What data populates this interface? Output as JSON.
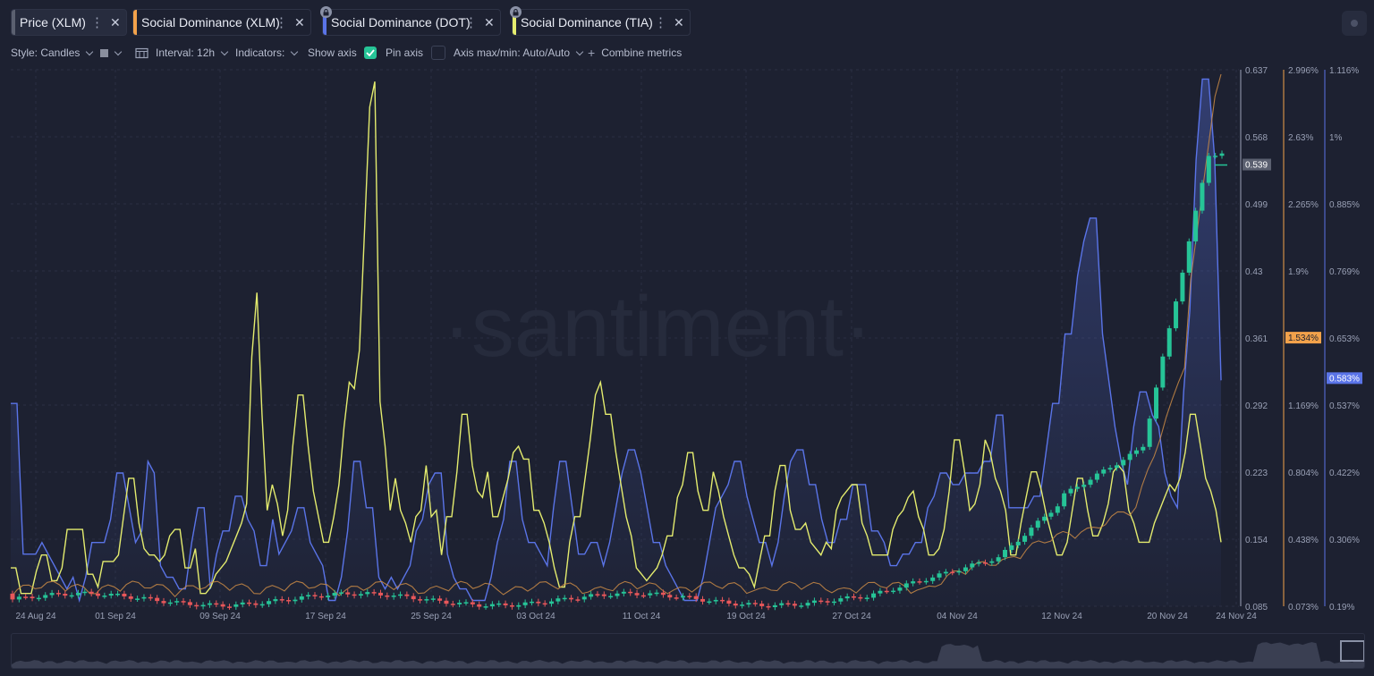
{
  "tabs": [
    {
      "label": "Price (XLM)",
      "color": "#5b6070",
      "active": true,
      "locked": false
    },
    {
      "label": "Social Dominance (XLM)",
      "color": "#f2a24b",
      "active": false,
      "locked": false
    },
    {
      "label": "Social Dominance (DOT)",
      "color": "#5a74e8",
      "active": false,
      "locked": true
    },
    {
      "label": "Social Dominance (TIA)",
      "color": "#e4ec6e",
      "active": false,
      "locked": true
    }
  ],
  "toolbar": {
    "style_label": "Style: Candles",
    "interval_label": "Interval: 12h",
    "indicators_label": "Indicators:",
    "show_axis_label": "Show axis",
    "show_axis_checked": true,
    "pin_axis_label": "Pin axis",
    "pin_axis_checked": false,
    "axis_label": "Axis max/min: Auto/Auto",
    "combine_label": "Combine metrics",
    "accent": "#26c497"
  },
  "watermark": "·santiment·",
  "chart_data": {
    "type": "line",
    "x_tick_labels": [
      "24 Aug 24",
      "01 Sep 24",
      "09 Sep 24",
      "17 Sep 24",
      "25 Sep 24",
      "03 Oct 24",
      "11 Oct 24",
      "19 Oct 24",
      "27 Oct 24",
      "04 Nov 24",
      "12 Nov 24",
      "20 Nov 24",
      "24 Nov 24"
    ],
    "axes": [
      {
        "name": "Price (XLM)",
        "ticks": [
          "0.637",
          "0.568",
          "0.499",
          "0.43",
          "0.361",
          "0.292",
          "0.223",
          "0.154",
          "0.085"
        ],
        "range": [
          0.085,
          0.637
        ],
        "current_label": "0.539",
        "current_value": 0.539,
        "color": "#9aa1b6"
      },
      {
        "name": "Social Dominance (XLM)",
        "ticks": [
          "2.996%",
          "2.63%",
          "2.265%",
          "1.9%",
          "1.534%",
          "1.169%",
          "0.804%",
          "0.438%",
          "0.073%"
        ],
        "range": [
          0.073,
          2.996
        ],
        "current_label": "1.534%",
        "current_value": 1.534,
        "color": "#f2a24b"
      },
      {
        "name": "Social Dominance (DOT)",
        "ticks": [
          "1.116%",
          "1%",
          "0.885%",
          "0.769%",
          "0.653%",
          "0.537%",
          "0.422%",
          "0.306%",
          "0.19%"
        ],
        "range": [
          0.19,
          1.116
        ],
        "current_label": "0.583%",
        "current_value": 0.583,
        "color": "#5a74e8"
      }
    ],
    "series": [
      {
        "name": "Social Dominance (DOT)",
        "color": "#5a74e8",
        "axis": 2,
        "values": [
          0.54,
          0.54,
          0.28,
          0.28,
          0.28,
          0.3,
          0.28,
          0.26,
          0.24,
          0.22,
          0.24,
          0.2,
          0.24,
          0.3,
          0.3,
          0.3,
          0.34,
          0.42,
          0.42,
          0.36,
          0.3,
          0.32,
          0.44,
          0.42,
          0.26,
          0.24,
          0.24,
          0.22,
          0.22,
          0.3,
          0.36,
          0.36,
          0.22,
          0.28,
          0.32,
          0.32,
          0.38,
          0.38,
          0.34,
          0.32,
          0.26,
          0.26,
          0.34,
          0.28,
          0.3,
          0.32,
          0.36,
          0.36,
          0.3,
          0.28,
          0.26,
          0.2,
          0.2,
          0.24,
          0.32,
          0.44,
          0.44,
          0.36,
          0.36,
          0.24,
          0.22,
          0.24,
          0.22,
          0.24,
          0.26,
          0.32,
          0.34,
          0.4,
          0.42,
          0.42,
          0.28,
          0.24,
          0.22,
          0.22,
          0.2,
          0.2,
          0.2,
          0.24,
          0.3,
          0.34,
          0.44,
          0.44,
          0.34,
          0.3,
          0.3,
          0.28,
          0.26,
          0.36,
          0.44,
          0.44,
          0.36,
          0.28,
          0.28,
          0.3,
          0.3,
          0.26,
          0.3,
          0.36,
          0.42,
          0.46,
          0.46,
          0.42,
          0.36,
          0.3,
          0.3,
          0.26,
          0.24,
          0.22,
          0.2,
          0.2,
          0.2,
          0.24,
          0.3,
          0.36,
          0.38,
          0.4,
          0.44,
          0.44,
          0.38,
          0.34,
          0.3,
          0.3,
          0.26,
          0.3,
          0.38,
          0.44,
          0.46,
          0.46,
          0.4,
          0.4,
          0.34,
          0.3,
          0.3,
          0.34,
          0.34,
          0.4,
          0.4,
          0.4,
          0.32,
          0.32,
          0.3,
          0.26,
          0.26,
          0.28,
          0.28,
          0.3,
          0.3,
          0.36,
          0.38,
          0.42,
          0.42,
          0.4,
          0.4,
          0.42,
          0.42,
          0.42,
          0.44,
          0.44,
          0.52,
          0.52,
          0.36,
          0.36,
          0.36,
          0.36,
          0.38,
          0.38,
          0.46,
          0.54,
          0.54,
          0.66,
          0.66,
          0.76,
          0.82,
          0.86,
          0.86,
          0.66,
          0.58,
          0.5,
          0.44,
          0.4,
          0.5,
          0.56,
          0.56,
          0.52,
          0.5,
          0.42,
          0.38,
          0.36,
          0.56,
          0.7,
          0.96,
          1.1,
          1.1,
          0.96,
          0.58
        ]
      },
      {
        "name": "Social Dominance (TIA)",
        "color": "#e4ec6e",
        "axis": null,
        "values": [
          12,
          12,
          4,
          4,
          4,
          11,
          16,
          16,
          8,
          8,
          12,
          24,
          24,
          24,
          24,
          10,
          10,
          6,
          14,
          14,
          14,
          16,
          28,
          40,
          40,
          26,
          18,
          16,
          16,
          14,
          16,
          22,
          24,
          24,
          12,
          12,
          18,
          4,
          4,
          6,
          10,
          12,
          14,
          18,
          22,
          26,
          32,
          78,
          98,
          60,
          30,
          38,
          32,
          22,
          30,
          50,
          66,
          66,
          50,
          36,
          28,
          20,
          20,
          28,
          38,
          56,
          70,
          68,
          80,
          118,
          156,
          164,
          64,
          50,
          30,
          40,
          30,
          26,
          20,
          28,
          30,
          44,
          28,
          30,
          16,
          28,
          28,
          42,
          60,
          60,
          44,
          36,
          34,
          42,
          28,
          28,
          34,
          40,
          48,
          50,
          46,
          46,
          30,
          30,
          26,
          20,
          12,
          6,
          6,
          20,
          28,
          28,
          40,
          52,
          66,
          70,
          60,
          60,
          48,
          38,
          28,
          22,
          12,
          10,
          8,
          10,
          12,
          16,
          22,
          22,
          34,
          38,
          48,
          48,
          36,
          30,
          30,
          42,
          36,
          28,
          22,
          16,
          12,
          12,
          10,
          6,
          14,
          22,
          22,
          36,
          44,
          44,
          30,
          24,
          24,
          26,
          20,
          18,
          16,
          20,
          18,
          30,
          34,
          36,
          38,
          38,
          26,
          22,
          16,
          16,
          16,
          16,
          24,
          28,
          30,
          34,
          36,
          28,
          24,
          16,
          16,
          18,
          24,
          36,
          52,
          52,
          42,
          30,
          32,
          38,
          52,
          48,
          40,
          36,
          30,
          16,
          16,
          26,
          34,
          42,
          42,
          36,
          28,
          22,
          16,
          16,
          20,
          30,
          40,
          40,
          30,
          22,
          22,
          26,
          32,
          42,
          44,
          42,
          30,
          26,
          20,
          20,
          20,
          26,
          30,
          34,
          38,
          36,
          40,
          48,
          60,
          60,
          50,
          40,
          36,
          30,
          20
        ]
      }
    ],
    "price_candles_note": "Price (XLM) shown as candles on left axis; ranges from ~0.09 to peak ~0.63"
  }
}
